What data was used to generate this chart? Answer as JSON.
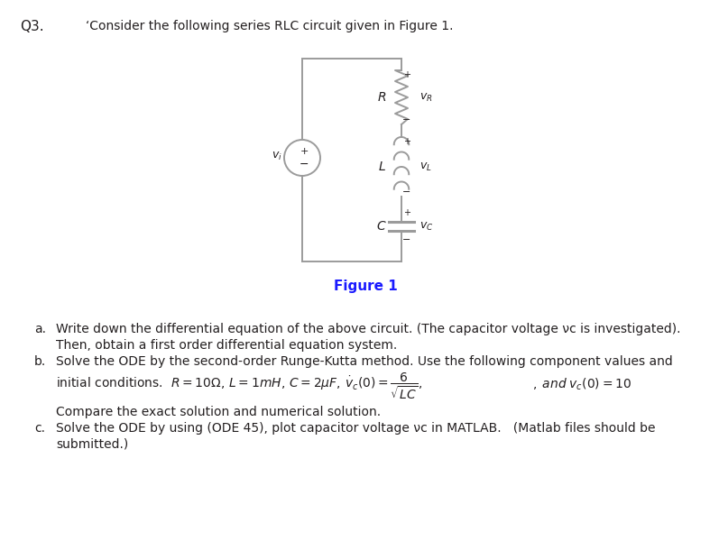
{
  "title": "Q3.",
  "question_text": "‘Consider the following series RLC circuit given in Figure 1.",
  "figure_label": "Figure 1",
  "part_a_label": "a.",
  "part_a_line1": "Write down the differential equation of the above circuit. (The capacitor voltage νᴄ is investigated).",
  "part_a_line2": "Then, obtain a first order differential equation system.",
  "part_b_label": "b.",
  "part_b_line1": "Solve the ODE by the second-order Runge-Kutta method. Use the following component values and",
  "part_b_line2": "initial conditions.",
  "compare": "Compare the exact solution and numerical solution.",
  "part_c_label": "c.",
  "part_c_line1": "Solve the ODE by using (ODE 45), plot capacitor voltage νᴄ in MATLAB.   (Matlab files should be",
  "part_c_line2": "submitted.)",
  "background": "#ffffff",
  "text_color": "#231f20",
  "circuit_color": "#9b9b9b",
  "figure_label_color": "#1a1aff",
  "title_color": "#231f20"
}
